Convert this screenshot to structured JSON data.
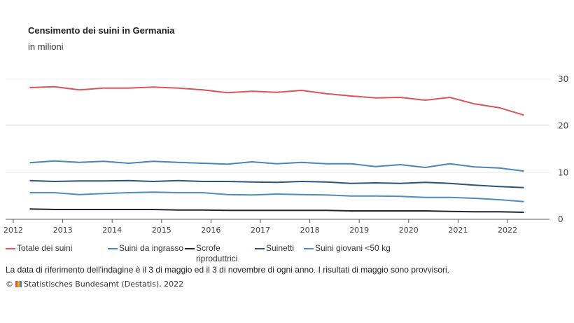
{
  "title": "Censimento dei suini in Germania",
  "subtitle": "in milioni",
  "note": "La data di riferimento dell'indagine è il 3 di maggio ed il 3 di novembre di ogni anno. I risultati di maggio sono provvisori.",
  "source": "Statistisches Bundesamt (Destatis), 2022",
  "copyright": "©",
  "chart_data": {
    "type": "line",
    "x": [
      "2012-05",
      "2012-11",
      "2013-05",
      "2013-11",
      "2014-05",
      "2014-11",
      "2015-05",
      "2015-11",
      "2016-05",
      "2016-11",
      "2017-05",
      "2017-11",
      "2018-05",
      "2018-11",
      "2019-05",
      "2019-11",
      "2020-05",
      "2020-11",
      "2021-05",
      "2021-11",
      "2022-05"
    ],
    "xticks": [
      "2012",
      "2013",
      "2014",
      "2015",
      "2016",
      "2017",
      "2018",
      "2019",
      "2020",
      "2021",
      "2022"
    ],
    "yticks": [
      "0",
      "10",
      "20",
      "30"
    ],
    "ylim": [
      0,
      30
    ],
    "grid": true,
    "yaxis_side": "right",
    "legend": "bottom",
    "series": [
      {
        "name": "Totale dei suini",
        "color": "#d9555a",
        "values": [
          28.2,
          28.4,
          27.7,
          28.1,
          28.1,
          28.3,
          28.1,
          27.7,
          27.1,
          27.4,
          27.2,
          27.6,
          26.9,
          26.4,
          26.0,
          26.1,
          25.5,
          26.1,
          24.7,
          23.9,
          22.3
        ]
      },
      {
        "name": "Suini da ingrasso",
        "color": "#4a86b8",
        "values": [
          12.1,
          12.5,
          12.2,
          12.4,
          12.0,
          12.4,
          12.2,
          12.0,
          11.8,
          12.3,
          11.9,
          12.2,
          11.9,
          11.9,
          11.3,
          11.7,
          11.1,
          11.9,
          11.2,
          11.0,
          10.3
        ]
      },
      {
        "name": "Scrofe riproduttrici",
        "color": "#1c2733",
        "values": [
          2.2,
          2.1,
          2.1,
          2.1,
          2.1,
          2.1,
          2.0,
          2.0,
          1.9,
          1.9,
          1.9,
          1.9,
          1.9,
          1.8,
          1.8,
          1.8,
          1.8,
          1.7,
          1.6,
          1.6,
          1.5
        ]
      },
      {
        "name": "Suinetti",
        "color": "#2f5478",
        "values": [
          8.3,
          8.1,
          8.2,
          8.2,
          8.3,
          8.1,
          8.3,
          8.1,
          8.1,
          8.0,
          7.9,
          8.1,
          8.0,
          7.7,
          7.8,
          7.7,
          7.9,
          7.7,
          7.3,
          7.0,
          6.8
        ]
      },
      {
        "name": "Suini giovani <50 kg",
        "color": "#4f8cc0",
        "values": [
          5.7,
          5.7,
          5.3,
          5.5,
          5.7,
          5.8,
          5.7,
          5.7,
          5.3,
          5.2,
          5.4,
          5.3,
          5.2,
          5.0,
          5.0,
          4.9,
          4.7,
          4.7,
          4.5,
          4.2,
          3.8
        ]
      }
    ]
  }
}
